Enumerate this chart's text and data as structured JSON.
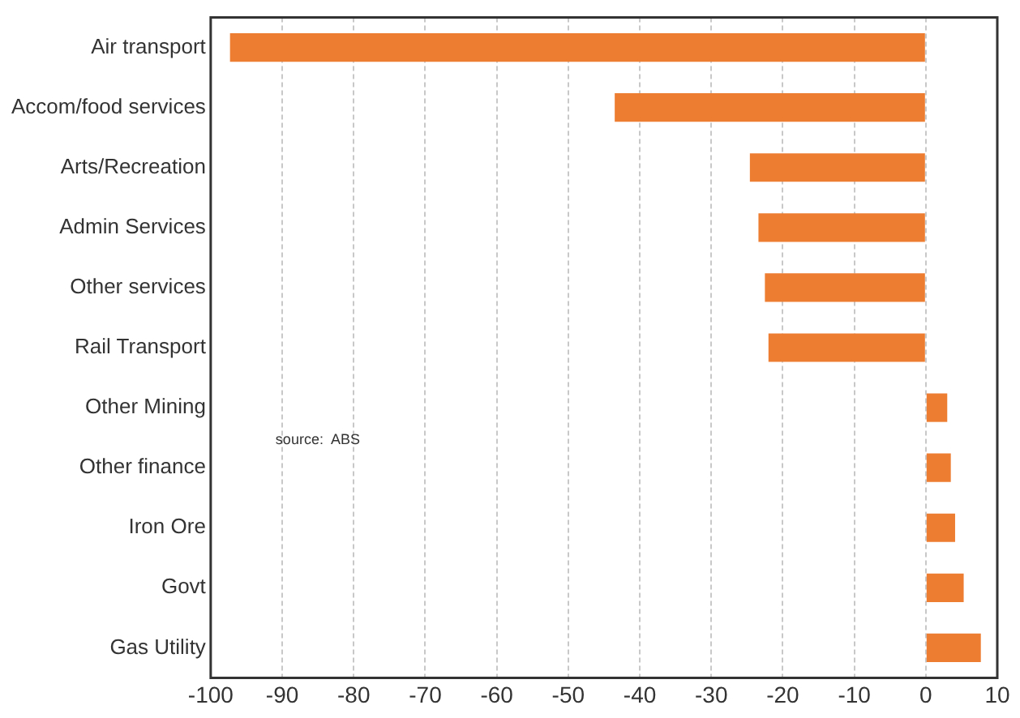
{
  "chart_data": {
    "type": "bar",
    "orientation": "horizontal",
    "categories": [
      "Air transport",
      "Accom/food services",
      "Arts/Recreation",
      "Admin Services",
      "Other services",
      "Rail Transport",
      "Other Mining",
      "Other finance",
      "Iron Ore",
      "Govt",
      "Gas Utility"
    ],
    "values": [
      -97.3,
      -43.5,
      -24.6,
      -23.4,
      -22.5,
      -22.0,
      3.0,
      3.5,
      4.1,
      5.3,
      7.7
    ],
    "color": "#ed7d31",
    "xlim": [
      -100,
      10
    ],
    "xticks": [
      -100,
      -90,
      -80,
      -70,
      -60,
      -50,
      -40,
      -30,
      -20,
      -10,
      0,
      10
    ],
    "grid": "x",
    "legend": false,
    "annotations": [
      "source:  ABS"
    ]
  }
}
